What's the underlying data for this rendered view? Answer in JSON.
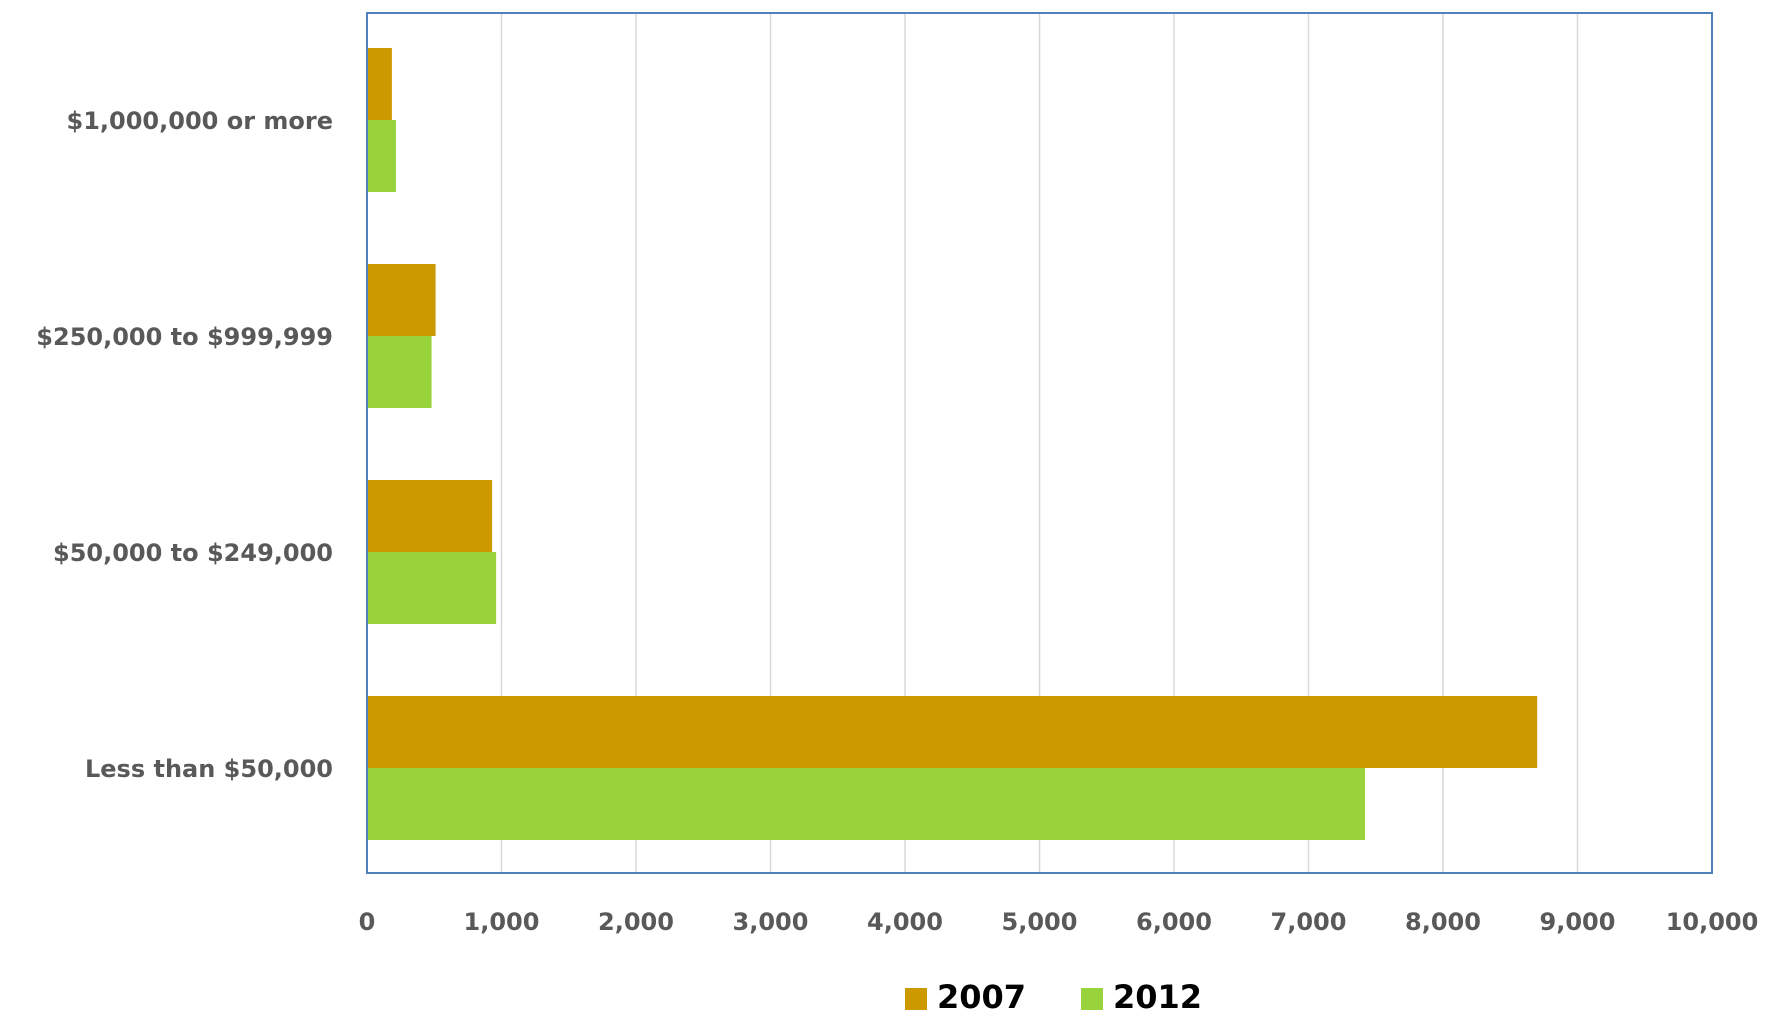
{
  "chart_data": {
    "type": "bar",
    "orientation": "horizontal",
    "categories": [
      "Less than $50,000",
      "$50,000 to $249,000",
      "$250,000 to $999,999",
      "$1,000,000 or more"
    ],
    "series": [
      {
        "name": "2007",
        "color": "#CC9900",
        "values": [
          8700,
          930,
          510,
          185
        ]
      },
      {
        "name": "2012",
        "color": "#99D33C",
        "values": [
          7420,
          960,
          480,
          215
        ]
      }
    ],
    "x_ticks": [
      "0",
      "1,000",
      "2,000",
      "3,000",
      "4,000",
      "5,000",
      "6,000",
      "7,000",
      "8,000",
      "9,000",
      "10,000"
    ],
    "xlim": [
      0,
      10000
    ],
    "title": "",
    "xlabel": "",
    "ylabel": "",
    "grid": true,
    "legend_position": "bottom",
    "colors": {
      "gridline": "#D9D9D9",
      "frame": "#4F81BD",
      "axis_text": "#595959"
    }
  }
}
